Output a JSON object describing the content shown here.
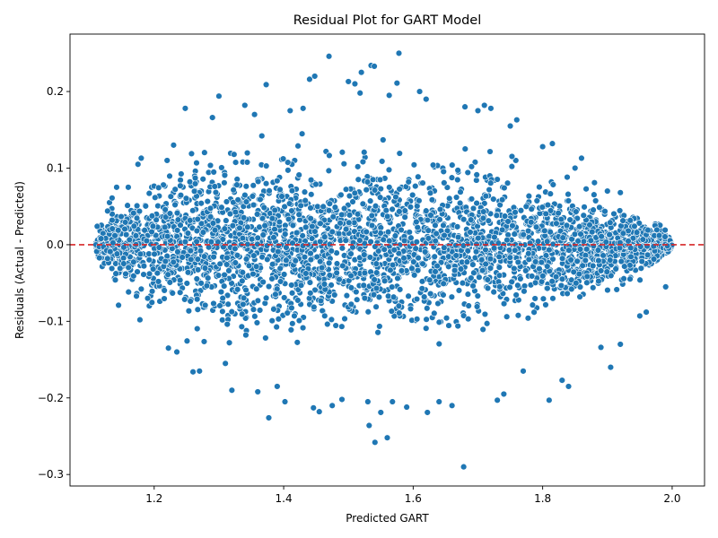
{
  "chart_data": {
    "type": "scatter",
    "title": "Residual Plot for GART Model",
    "xlabel": "Predicted GART",
    "ylabel": "Residuals (Actual - Predicted)",
    "xlim": [
      1.07,
      2.05
    ],
    "ylim": [
      -0.315,
      0.275
    ],
    "x_ticks": [
      1.2,
      1.4,
      1.6,
      1.8,
      2.0
    ],
    "x_tick_labels": [
      "1.2",
      "1.4",
      "1.6",
      "1.8",
      "2.0"
    ],
    "y_ticks": [
      -0.3,
      -0.2,
      -0.1,
      0.0,
      0.1,
      0.2
    ],
    "y_tick_labels": [
      "−0.3",
      "−0.2",
      "−0.1",
      "0.0",
      "0.1",
      "0.2"
    ],
    "reference_line": {
      "y": 0.0,
      "color": "#d62728",
      "style": "dashed"
    },
    "point_color": "#1f77b4",
    "point_edge_color": "#ffffff",
    "grid": false,
    "legend": "none",
    "points": [
      [
        1.112,
        0.024
      ],
      [
        1.118,
        0.008
      ],
      [
        1.128,
        0.044
      ],
      [
        1.131,
        0.055
      ],
      [
        1.135,
        0.032
      ],
      [
        1.128,
        -0.018
      ],
      [
        1.14,
        -0.046
      ],
      [
        1.142,
        0.075
      ],
      [
        1.145,
        -0.079
      ],
      [
        1.135,
        0.061
      ],
      [
        1.16,
        0.075
      ],
      [
        1.175,
        0.105
      ],
      [
        1.18,
        0.113
      ],
      [
        1.178,
        -0.098
      ],
      [
        1.19,
        -0.07
      ],
      [
        1.22,
        0.11
      ],
      [
        1.222,
        -0.135
      ],
      [
        1.235,
        -0.14
      ],
      [
        1.23,
        0.13
      ],
      [
        1.248,
        0.178
      ],
      [
        1.26,
        -0.166
      ],
      [
        1.27,
        -0.165
      ],
      [
        1.3,
        0.194
      ],
      [
        1.29,
        0.166
      ],
      [
        1.31,
        -0.155
      ],
      [
        1.32,
        -0.19
      ],
      [
        1.34,
        0.182
      ],
      [
        1.355,
        0.17
      ],
      [
        1.373,
        0.209
      ],
      [
        1.377,
        -0.226
      ],
      [
        1.36,
        -0.192
      ],
      [
        1.39,
        -0.185
      ],
      [
        1.402,
        -0.205
      ],
      [
        1.41,
        0.175
      ],
      [
        1.43,
        0.178
      ],
      [
        1.44,
        0.216
      ],
      [
        1.448,
        0.22
      ],
      [
        1.446,
        -0.213
      ],
      [
        1.455,
        -0.218
      ],
      [
        1.47,
        0.246
      ],
      [
        1.475,
        -0.21
      ],
      [
        1.49,
        -0.202
      ],
      [
        1.5,
        0.213
      ],
      [
        1.51,
        0.21
      ],
      [
        1.518,
        0.198
      ],
      [
        1.52,
        0.225
      ],
      [
        1.53,
        -0.205
      ],
      [
        1.532,
        -0.236
      ],
      [
        1.535,
        0.234
      ],
      [
        1.54,
        0.233
      ],
      [
        1.541,
        -0.258
      ],
      [
        1.55,
        -0.219
      ],
      [
        1.56,
        -0.252
      ],
      [
        1.563,
        0.195
      ],
      [
        1.568,
        -0.205
      ],
      [
        1.575,
        0.211
      ],
      [
        1.578,
        0.25
      ],
      [
        1.59,
        -0.212
      ],
      [
        1.61,
        0.2
      ],
      [
        1.62,
        0.19
      ],
      [
        1.622,
        -0.219
      ],
      [
        1.64,
        -0.205
      ],
      [
        1.66,
        -0.21
      ],
      [
        1.678,
        -0.29
      ],
      [
        1.68,
        0.18
      ],
      [
        1.7,
        0.175
      ],
      [
        1.71,
        0.182
      ],
      [
        1.72,
        0.178
      ],
      [
        1.73,
        -0.203
      ],
      [
        1.74,
        -0.195
      ],
      [
        1.75,
        0.155
      ],
      [
        1.76,
        0.163
      ],
      [
        1.77,
        -0.165
      ],
      [
        1.8,
        0.128
      ],
      [
        1.81,
        -0.203
      ],
      [
        1.815,
        0.132
      ],
      [
        1.83,
        -0.177
      ],
      [
        1.84,
        -0.185
      ],
      [
        1.85,
        0.1
      ],
      [
        1.86,
        0.113
      ],
      [
        1.88,
        0.081
      ],
      [
        1.89,
        -0.134
      ],
      [
        1.9,
        0.07
      ],
      [
        1.905,
        -0.16
      ],
      [
        1.92,
        -0.13
      ],
      [
        1.92,
        0.068
      ],
      [
        1.95,
        -0.093
      ],
      [
        1.96,
        -0.088
      ],
      [
        1.98,
        0.012
      ],
      [
        1.99,
        -0.055
      ]
    ],
    "point_count_note": ""
  }
}
